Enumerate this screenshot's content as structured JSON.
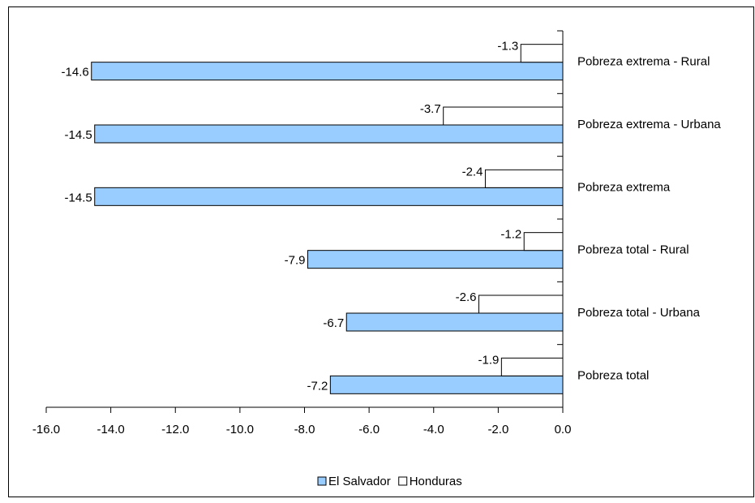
{
  "chart_data": {
    "type": "bar",
    "orientation": "horizontal",
    "categories": [
      "Pobreza extrema - Rural",
      "Pobreza extrema - Urbana",
      "Pobreza extrema",
      "Pobreza total - Rural",
      "Pobreza total - Urbana",
      "Pobreza total"
    ],
    "series": [
      {
        "name": "El Salvador",
        "color": "#99ccff",
        "values": [
          -14.6,
          -14.5,
          -14.5,
          -7.9,
          -6.7,
          -7.2
        ]
      },
      {
        "name": "Honduras",
        "color": "#ffffff",
        "values": [
          -1.3,
          -3.7,
          -2.4,
          -1.2,
          -2.6,
          -1.9
        ]
      }
    ],
    "xlim": [
      -16,
      0
    ],
    "xticks": [
      {
        "value": -16,
        "label": "-16.0"
      },
      {
        "value": -14,
        "label": "-14.0"
      },
      {
        "value": -12,
        "label": "-12.0"
      },
      {
        "value": -10,
        "label": "-10.0"
      },
      {
        "value": -8,
        "label": "-8.0"
      },
      {
        "value": -6,
        "label": "-6.0"
      },
      {
        "value": -4,
        "label": "-4.0"
      },
      {
        "value": -2,
        "label": "-2.0"
      },
      {
        "value": 0,
        "label": "0.0"
      }
    ],
    "legend": "bottom",
    "grid": false
  }
}
